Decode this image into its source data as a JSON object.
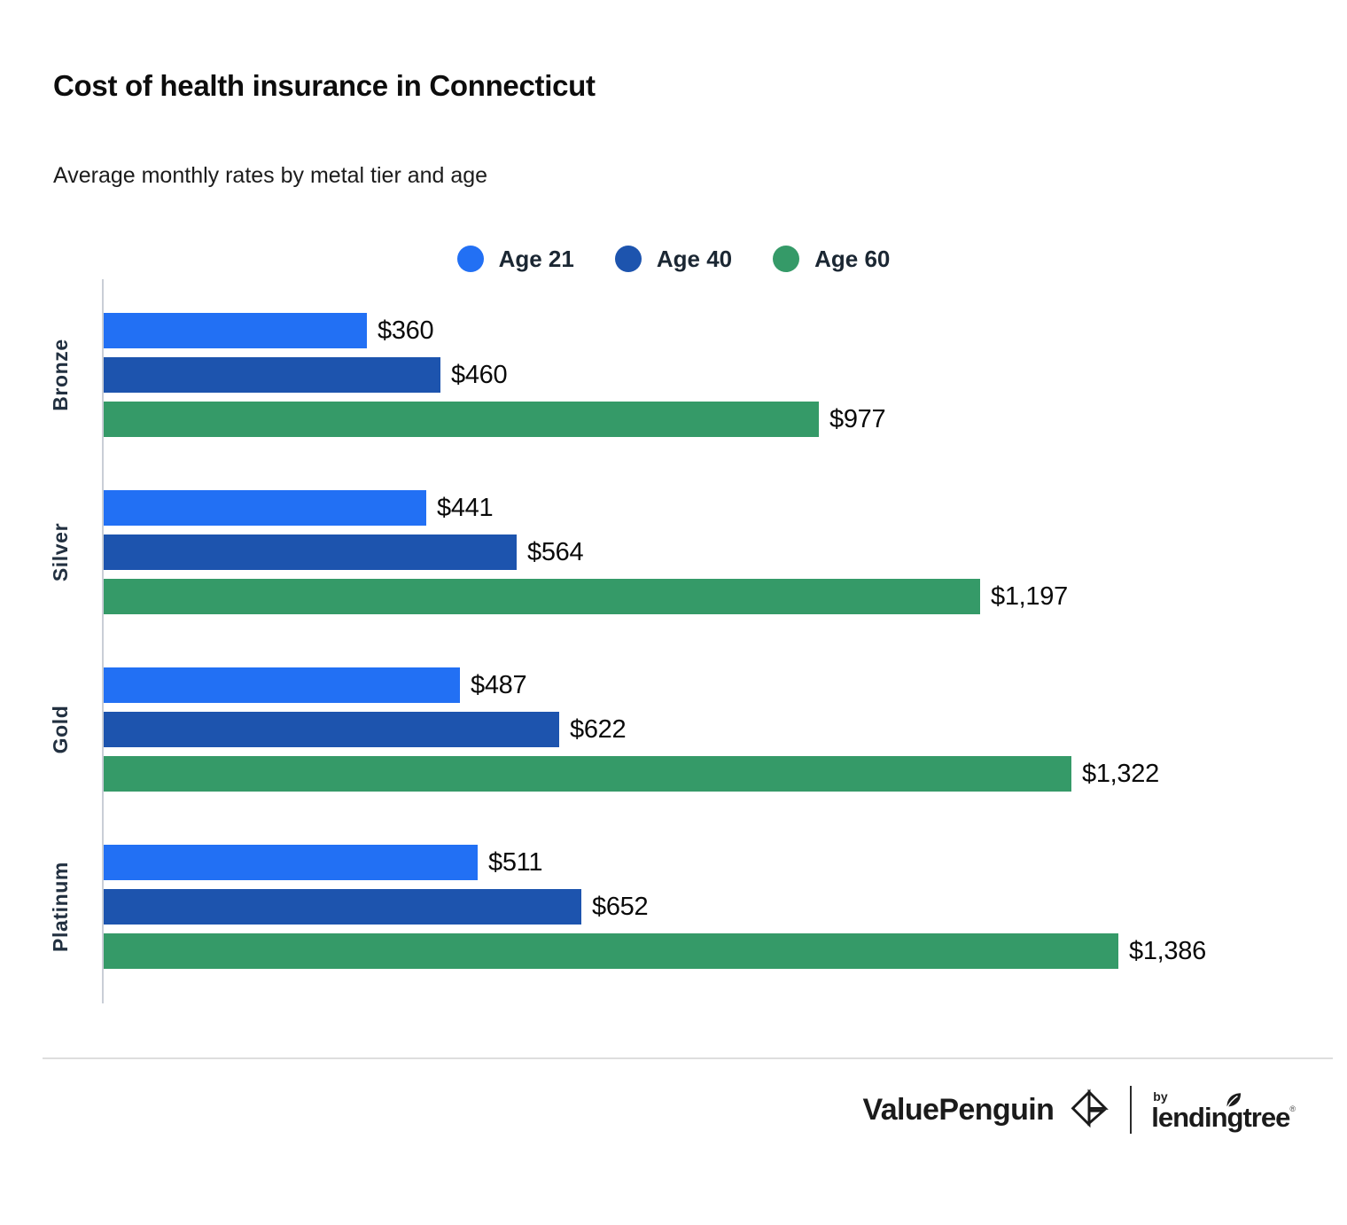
{
  "header": {
    "title": "Cost of health insurance in Connecticut",
    "subtitle": "Average monthly rates by metal tier and age"
  },
  "chart_data": {
    "type": "bar",
    "orientation": "horizontal",
    "title": "Cost of health insurance in Connecticut",
    "subtitle": "Average monthly rates by metal tier and age",
    "categories": [
      "Bronze",
      "Silver",
      "Gold",
      "Platinum"
    ],
    "series": [
      {
        "name": "Age 21",
        "color": "#2270f4",
        "values": [
          360,
          441,
          487,
          511
        ],
        "labels": [
          "$360",
          "$441",
          "$487",
          "$511"
        ]
      },
      {
        "name": "Age 40",
        "color": "#1d54ae",
        "values": [
          460,
          564,
          622,
          652
        ],
        "labels": [
          "$460",
          "$564",
          "$622",
          "$652"
        ]
      },
      {
        "name": "Age 60",
        "color": "#359a68",
        "values": [
          977,
          1197,
          1322,
          1386
        ],
        "labels": [
          "$977",
          "$1,197",
          "$1,322",
          "$1,386"
        ]
      }
    ],
    "xlabel": "",
    "ylabel": "",
    "xlim": [
      0,
      1400
    ],
    "grid": false,
    "legend_position": "top",
    "value_labels_shown": true
  },
  "footer": {
    "brand": "ValuePenguin",
    "by": "by",
    "partner": "lendingtree",
    "trademark": "®"
  },
  "colors": {
    "age21": "#2270f4",
    "age40": "#1d54ae",
    "age60": "#359a68",
    "axis": "#c9ced6",
    "separator": "#dedede",
    "text": "#0d0d0d"
  }
}
